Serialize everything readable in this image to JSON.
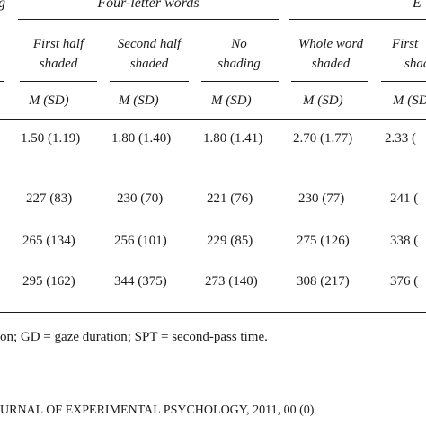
{
  "table": {
    "group_left_fragment": "g",
    "group_main": "Four-letter words",
    "group_right_fragment": "E",
    "columns": [
      {
        "lines": [
          "First half",
          "shaded"
        ]
      },
      {
        "lines": [
          "Second half",
          "shaded"
        ]
      },
      {
        "lines": [
          "No",
          "shading"
        ]
      },
      {
        "lines": [
          "Whole word",
          "shaded"
        ]
      },
      {
        "lines": [
          "First",
          "shad"
        ]
      }
    ],
    "stat_label": "M (SD)",
    "rows": [
      [
        "1.50 (1.19)",
        "1.80 (1.40)",
        "1.80 (1.41)",
        "2.70 (1.77)",
        "2.33 ("
      ],
      [
        "227 (83)",
        "230 (70)",
        "221 (76)",
        "230 (77)",
        "241 ("
      ],
      [
        "265 (134)",
        "256 (101)",
        "229 (85)",
        "275 (126)",
        "338 ("
      ],
      [
        "295 (162)",
        "344 (375)",
        "273 (140)",
        "308 (217)",
        "376 ("
      ]
    ]
  },
  "note": "on; GD = gaze duration; SPT = second-pass time.",
  "journal_footer": "URNAL OF EXPERIMENTAL PSYCHOLOGY, 2011, 00 (0)"
}
